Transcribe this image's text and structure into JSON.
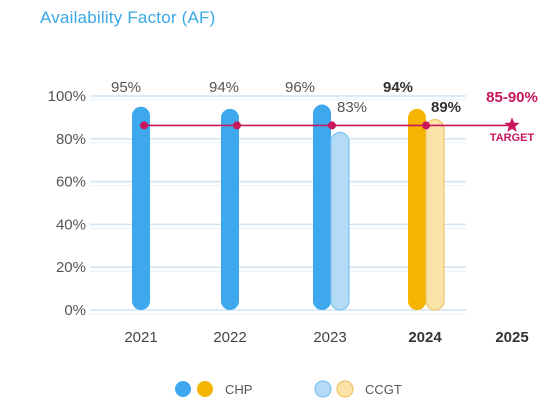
{
  "chart_data": {
    "type": "bar",
    "title": "Availability Factor (AF)",
    "categories": [
      "2021",
      "2022",
      "2023",
      "2024",
      "2025"
    ],
    "bold_categories": [
      "2024",
      "2025"
    ],
    "ylim": [
      0,
      100
    ],
    "yticks": [
      "100%",
      "80%",
      "60%",
      "40%",
      "20%",
      "0%"
    ],
    "series": [
      {
        "name": "CHP",
        "values": [
          95,
          94,
          96,
          94,
          null
        ],
        "labels": [
          "95%",
          "94%",
          "96%",
          "94%",
          null
        ],
        "colors": [
          "#3ea8ee",
          "#3ea8ee",
          "#3ea8ee",
          "#f5b400",
          null
        ]
      },
      {
        "name": "CCGT",
        "values": [
          null,
          null,
          83,
          89,
          null
        ],
        "labels": [
          null,
          null,
          "83%",
          "89%",
          null
        ],
        "colors": [
          null,
          null,
          "#b3dbf7",
          "#fbe3a7",
          null
        ]
      }
    ],
    "target": {
      "value": 90,
      "label": "85-90%",
      "sublabel": "TARGET",
      "color": "#c8175d"
    },
    "legend": [
      {
        "label": "CHP",
        "colors": [
          "#3ea8ee",
          "#f5b400"
        ]
      },
      {
        "label": "CCGT",
        "colors": [
          "#b3dbf7",
          "#fbe3a7"
        ]
      }
    ],
    "legend_position": "bottom",
    "grid": true
  }
}
